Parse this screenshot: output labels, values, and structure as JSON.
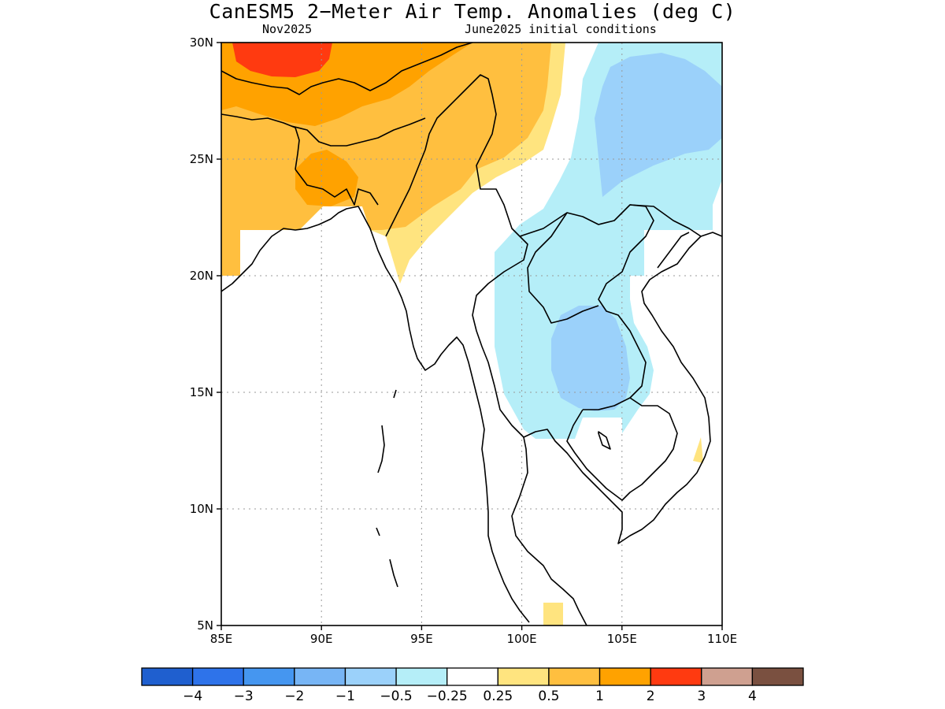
{
  "title": "CanESM5 2−Meter Air Temp. Anomalies (deg C)",
  "subtitle_left": "Nov2025",
  "subtitle_right": "June2025 initial conditions",
  "map": {
    "region": "Indochina / Bay of Bengal",
    "lon_range": [
      85,
      110
    ],
    "lat_range": [
      5,
      30
    ],
    "x_ticks": [
      "85E",
      "90E",
      "95E",
      "100E",
      "105E",
      "110E"
    ],
    "y_ticks": [
      "5N",
      "10N",
      "15N",
      "20N",
      "25N",
      "30N"
    ],
    "gridlines": "dotted",
    "anomaly_regions": [
      {
        "area": "Himalayas / Tibet south edge",
        "level": "2 to 3"
      },
      {
        "area": "Nepal, Bangladesh, NE India",
        "level": "1 to 2"
      },
      {
        "area": "Bangladesh, Myanmar north, south China",
        "level": "0.5 to 1"
      },
      {
        "area": "Myanmar coast fringe",
        "level": "0.25 to 0.5"
      },
      {
        "area": "Southern China (Yunnan/Guangxi)",
        "level": "-1 to -0.5"
      },
      {
        "area": "Laos, Thailand, Vietnam north",
        "level": "-0.5 to -0.25"
      },
      {
        "area": "Northeast Thailand",
        "level": "-1 to -0.5"
      },
      {
        "area": "Vietnam coast, Malay peninsula tip",
        "level": "0.25 to 0.5"
      }
    ]
  },
  "colorbar": {
    "colors": [
      "#1f5fcf",
      "#2e73ea",
      "#4596f0",
      "#77b5f5",
      "#9bd1fa",
      "#b5eef8",
      "#ffffff",
      "#ffe47f",
      "#ffbf3f",
      "#ffa200",
      "#ff3a10",
      "#cfa090",
      "#7a5040"
    ],
    "labels": [
      "−4",
      "−3",
      "−2",
      "−1",
      "−0.5",
      "−0.25",
      "0.25",
      "0.5",
      "1",
      "2",
      "3",
      "4"
    ]
  }
}
